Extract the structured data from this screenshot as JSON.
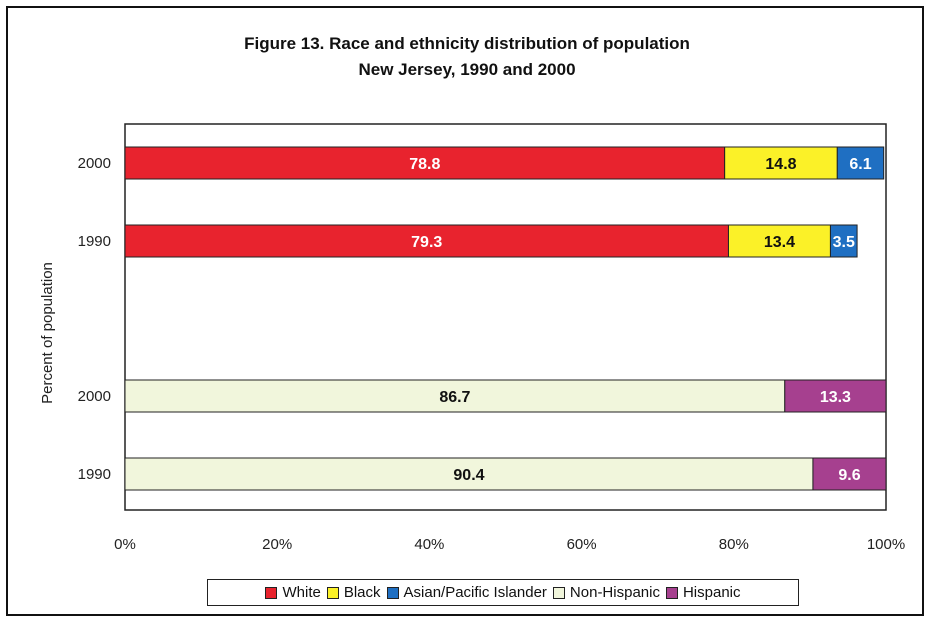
{
  "chart_data": {
    "type": "bar",
    "orientation": "horizontal",
    "stacked": true,
    "title": "Figure 13. Race and ethnicity distribution of population",
    "subtitle": "New Jersey, 1990 and 2000",
    "xlabel": "",
    "ylabel": "Percent of population",
    "xlim": [
      0,
      100
    ],
    "x_ticks": [
      "0%",
      "20%",
      "40%",
      "60%",
      "80%",
      "100%"
    ],
    "grid": false,
    "legend_position": "bottom",
    "categories": [
      "2000",
      "1990",
      "2000",
      "1990"
    ],
    "series": [
      {
        "name": "White",
        "color": "#e8232e",
        "label_color": "#ffffff",
        "values": [
          78.8,
          79.3,
          0,
          0
        ],
        "labels": [
          "78.8",
          "79.3",
          "",
          ""
        ]
      },
      {
        "name": "Black",
        "color": "#fbf128",
        "label_color": "#111111",
        "values": [
          14.8,
          13.4,
          0,
          0
        ],
        "labels": [
          "14.8",
          "13.4",
          "",
          ""
        ]
      },
      {
        "name": "Asian/Pacific Islander",
        "color": "#1f6fc2",
        "label_color": "#ffffff",
        "values": [
          6.1,
          3.5,
          0,
          0
        ],
        "labels": [
          "6.1",
          "3.5",
          "",
          ""
        ]
      },
      {
        "name": "Non-Hispanic",
        "color": "#f1f6dc",
        "label_color": "#111111",
        "values": [
          0,
          0,
          86.7,
          90.4
        ],
        "labels": [
          "",
          "",
          "86.7",
          "90.4"
        ]
      },
      {
        "name": "Hispanic",
        "color": "#a6408f",
        "label_color": "#ffffff",
        "values": [
          0,
          0,
          13.3,
          9.6
        ],
        "labels": [
          "",
          "",
          "13.3",
          "9.6"
        ]
      }
    ]
  }
}
